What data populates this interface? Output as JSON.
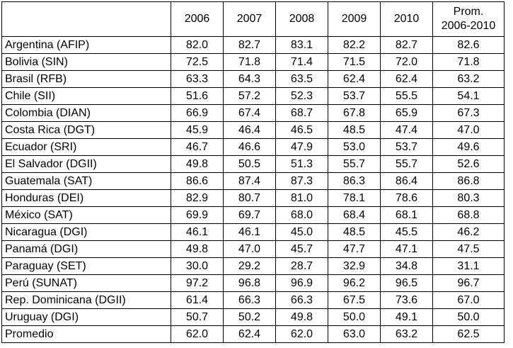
{
  "table": {
    "header": {
      "country": "",
      "years": [
        "2006",
        "2007",
        "2008",
        "2009",
        "2010"
      ],
      "avg_line1": "Prom.",
      "avg_line2": "2006-2010"
    },
    "rows": [
      {
        "country": "Argentina (AFIP)",
        "values": [
          "82.0",
          "82.7",
          "83.1",
          "82.2",
          "82.7",
          "82.6"
        ]
      },
      {
        "country": "Bolivia (SIN)",
        "values": [
          "72.5",
          "71.8",
          "71.4",
          "71.5",
          "72.0",
          "71.8"
        ]
      },
      {
        "country": "Brasil (RFB)",
        "values": [
          "63.3",
          "64.3",
          "63.5",
          "62.4",
          "62.4",
          "63.2"
        ]
      },
      {
        "country": "Chile (SII)",
        "values": [
          "51.6",
          "57.2",
          "52.3",
          "53.7",
          "55.5",
          "54.1"
        ]
      },
      {
        "country": "Colombia (DIAN)",
        "values": [
          "66.9",
          "67.4",
          "68.7",
          "67.8",
          "65.9",
          "67.3"
        ]
      },
      {
        "country": "Costa Rica (DGT)",
        "values": [
          "45.9",
          "46.4",
          "46.5",
          "48.5",
          "47.4",
          "47.0"
        ]
      },
      {
        "country": "Ecuador (SRI)",
        "values": [
          "46.7",
          "46.6",
          "47.9",
          "53.0",
          "53.7",
          "49.6"
        ]
      },
      {
        "country": "El Salvador (DGII)",
        "values": [
          "49.8",
          "50.5",
          "51.3",
          "55.7",
          "55.7",
          "52.6"
        ]
      },
      {
        "country": "Guatemala (SAT)",
        "values": [
          "86.6",
          "87.4",
          "87.3",
          "86.3",
          "86.4",
          "86.8"
        ]
      },
      {
        "country": "Honduras (DEI)",
        "values": [
          "82.9",
          "80.7",
          "81.0",
          "78.1",
          "78.6",
          "80.3"
        ]
      },
      {
        "country": "México (SAT)",
        "values": [
          "69.9",
          "69.7",
          "68.0",
          "68.4",
          "68.1",
          "68.8"
        ]
      },
      {
        "country": "Nicaragua (DGI)",
        "values": [
          "46.1",
          "46.1",
          "45.0",
          "48.5",
          "45.5",
          "46.2"
        ]
      },
      {
        "country": "Panamá (DGI)",
        "values": [
          "49.8",
          "47.0",
          "45.7",
          "47.7",
          "47.1",
          "47.5"
        ]
      },
      {
        "country": "Paraguay (SET)",
        "values": [
          "30.0",
          "29.2",
          "28.7",
          "32.9",
          "34.8",
          "31.1"
        ]
      },
      {
        "country": "Perú (SUNAT)",
        "values": [
          "97.2",
          "96.8",
          "96.9",
          "96.2",
          "96.5",
          "96.7"
        ]
      },
      {
        "country": "Rep. Dominicana (DGII)",
        "values": [
          "61.4",
          "66.3",
          "66.3",
          "67.5",
          "73.6",
          "67.0"
        ]
      },
      {
        "country": "Uruguay (DGI)",
        "values": [
          "50.7",
          "50.2",
          "49.8",
          "50.0",
          "49.1",
          "50.0"
        ]
      },
      {
        "country": "Promedio",
        "values": [
          "62.0",
          "62.4",
          "62.0",
          "63.0",
          "63.2",
          "62.5"
        ]
      }
    ]
  }
}
